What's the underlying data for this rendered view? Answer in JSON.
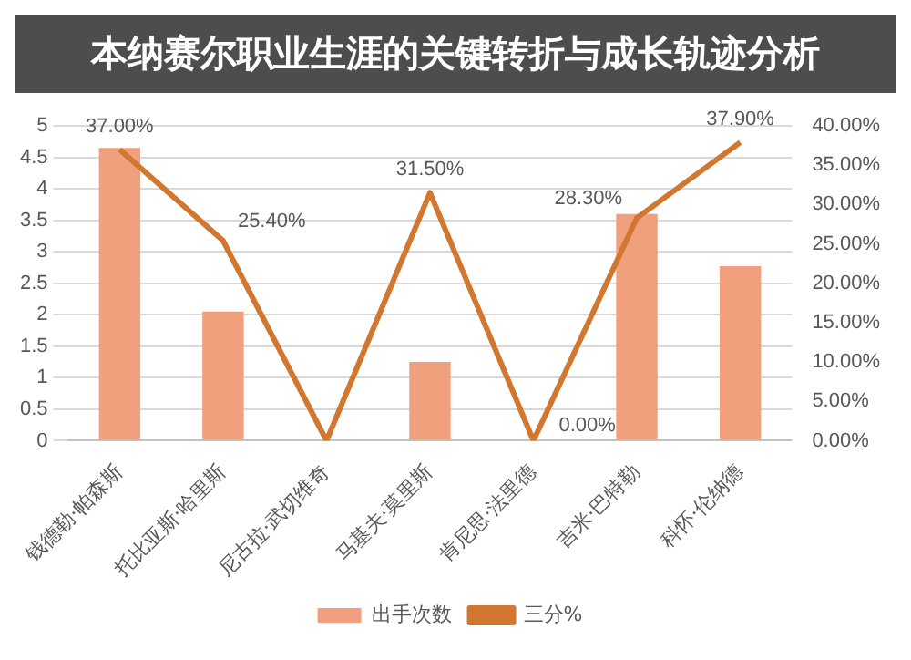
{
  "chart_data": {
    "type": "bar",
    "title": "本纳赛尔职业生涯的关键转折与成长轨迹分析",
    "categories": [
      "钱德勒·帕森斯",
      "托比亚斯·哈里斯",
      "尼古拉·武切维奇",
      "马基夫·莫里斯",
      "肯尼思·法里德",
      "吉米·巴特勒",
      "科怀·伦纳德"
    ],
    "series": [
      {
        "name": "出手次数",
        "color": "#f0a07c",
        "values": [
          4.65,
          2.05,
          null,
          1.25,
          null,
          3.6,
          2.77
        ]
      },
      {
        "name": "三分%",
        "type": "line",
        "axis": "y2",
        "color": "#d2772f",
        "values": [
          37.0,
          25.4,
          0,
          31.5,
          0,
          28.3,
          37.9
        ],
        "value_labels": [
          "37.00%",
          "25.40%",
          null,
          "31.50%",
          "0.00%",
          "28.30%",
          "37.90%"
        ]
      }
    ],
    "ylim": [
      0,
      5
    ],
    "yticks": [
      0,
      0.5,
      1,
      1.5,
      2,
      2.5,
      3,
      3.5,
      4,
      4.5,
      5
    ],
    "y2lim": [
      0,
      40
    ],
    "y2ticks": [
      {
        "value": 0,
        "label": "0.00%"
      },
      {
        "value": 5,
        "label": "5.00%"
      },
      {
        "value": 10,
        "label": "10.00%"
      },
      {
        "value": 15,
        "label": "15.00%"
      },
      {
        "value": 20,
        "label": "20.00%"
      },
      {
        "value": 25,
        "label": "25.00%"
      },
      {
        "value": 30,
        "label": "30.00%"
      },
      {
        "value": 35,
        "label": "35.00%"
      },
      {
        "value": 40,
        "label": "40.00%"
      }
    ],
    "grid": "y",
    "legend": "bottom"
  }
}
